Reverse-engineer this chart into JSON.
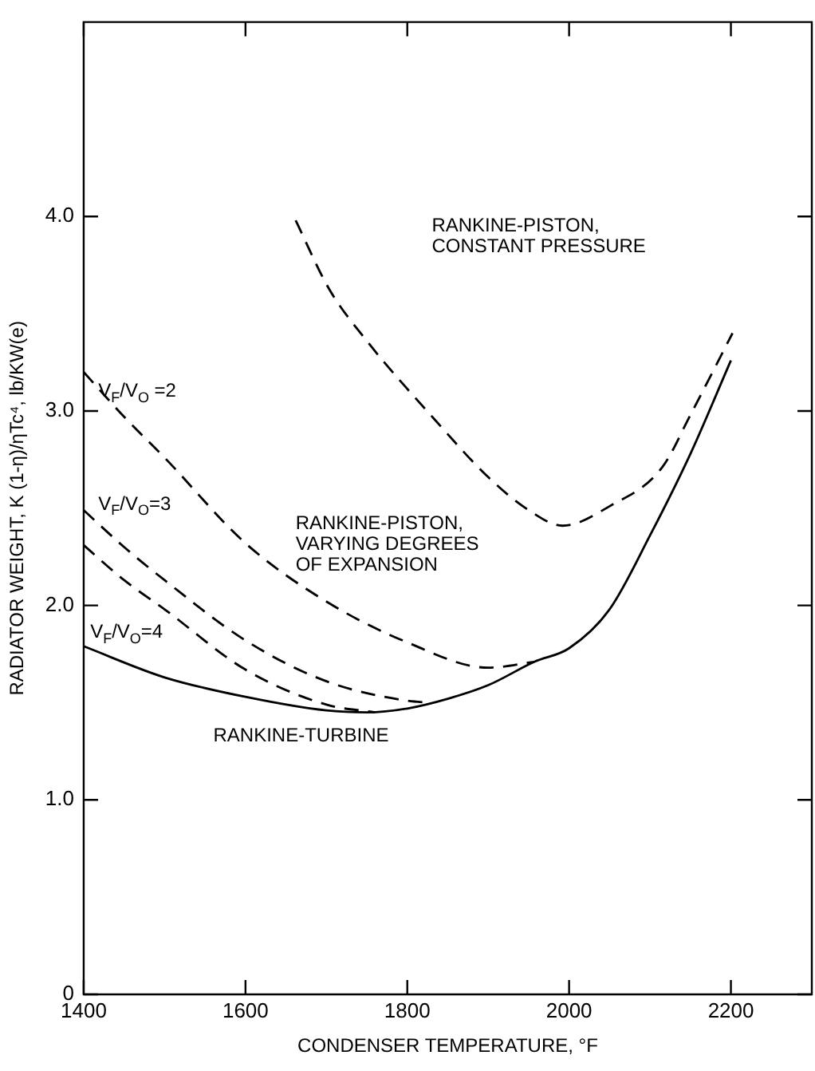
{
  "chart_data": {
    "type": "line",
    "xlabel": "CONDENSER TEMPERATURE, °F",
    "ylabel": "RADIATOR WEIGHT, K (1-η)/ηTc⁴, lb/KW(e)",
    "xlim": [
      1400,
      2300
    ],
    "xticks": [
      1400,
      1600,
      1800,
      2000,
      2200
    ],
    "ylim": [
      0,
      5
    ],
    "yticks": [
      {
        "value": 0,
        "label": "0"
      },
      {
        "value": 1,
        "label": "1.0"
      },
      {
        "value": 2,
        "label": "2.0"
      },
      {
        "value": 3,
        "label": "3.0"
      },
      {
        "value": 4,
        "label": "4.0"
      }
    ],
    "grid": false,
    "legend": false,
    "marker": "none",
    "series": [
      {
        "color": "#000000",
        "line_style": "dashed",
        "x": [
          1662,
          1703,
          1750,
          1833,
          1900,
          1950,
          1992,
          2050,
          2115,
          2150,
          2202
        ],
        "values": [
          3.98,
          3.63,
          3.36,
          2.96,
          2.66,
          2.49,
          2.41,
          2.51,
          2.71,
          2.98,
          3.4
        ]
      },
      {
        "color": "#000000",
        "line_style": "dashed",
        "x": [
          1400,
          1450,
          1500,
          1600,
          1700,
          1800,
          1900,
          1957
        ],
        "values": [
          3.2,
          2.97,
          2.76,
          2.32,
          2.02,
          1.81,
          1.68,
          1.71
        ]
      },
      {
        "color": "#000000",
        "line_style": "dashed",
        "x": [
          1400,
          1450,
          1500,
          1600,
          1700,
          1800,
          1830
        ],
        "values": [
          2.49,
          2.3,
          2.13,
          1.82,
          1.61,
          1.51,
          1.5
        ]
      },
      {
        "color": "#000000",
        "line_style": "dashed",
        "x": [
          1400,
          1450,
          1500,
          1600,
          1700,
          1760
        ],
        "values": [
          2.31,
          2.13,
          1.98,
          1.67,
          1.49,
          1.45
        ]
      },
      {
        "color": "#000000",
        "line_style": "solid",
        "x": [
          1400,
          1500,
          1600,
          1700,
          1750,
          1800,
          1850,
          1900,
          1957,
          2000,
          2050,
          2100,
          2150,
          2200
        ],
        "values": [
          1.79,
          1.63,
          1.53,
          1.46,
          1.45,
          1.47,
          1.52,
          1.59,
          1.71,
          1.78,
          1.98,
          2.36,
          2.78,
          3.26
        ]
      }
    ],
    "annotations": [
      "RANKINE-PISTON,\nCONSTANT PRESSURE",
      "RANKINE-PISTON,\nVARYING DEGREES\nOF EXPANSION",
      "RANKINE-TURBINE",
      "V$_{F}$/V$_{O}$ =2",
      "V$_{F}$/V$_{O}$=3",
      "V$_{F}$/V$_{O}$=4"
    ]
  }
}
